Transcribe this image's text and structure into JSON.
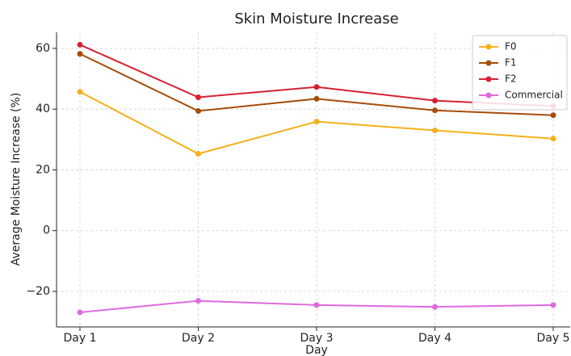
{
  "chart_data": {
    "type": "line",
    "title": "Skin Moisture Increase",
    "x_label": "Day",
    "y_label": "Average Moisture Increase (%)",
    "categories": [
      "Day 1",
      "Day 2",
      "Day 3",
      "Day 4",
      "Day 5"
    ],
    "series": [
      {
        "name": "F0",
        "color": "#f5b01a",
        "values": [
          45.7,
          25.3,
          35.9,
          33.0,
          30.3
        ]
      },
      {
        "name": "F1",
        "color": "#a64d0c",
        "values": [
          58.2,
          39.4,
          43.4,
          39.6,
          38.0
        ]
      },
      {
        "name": "F2",
        "color": "#d62132",
        "values": [
          61.2,
          43.9,
          47.3,
          42.8,
          41.0
        ]
      },
      {
        "name": "Commercial",
        "color": "#dd6bdd",
        "values": [
          -26.9,
          -23.1,
          -24.5,
          -25.1,
          -24.5
        ]
      }
    ],
    "ylim": [
      -31.7,
      65.3
    ],
    "yticks": [
      {
        "value": -20,
        "label": "−20"
      },
      0,
      20,
      40,
      60
    ],
    "grid": true,
    "legend": "upper right"
  }
}
